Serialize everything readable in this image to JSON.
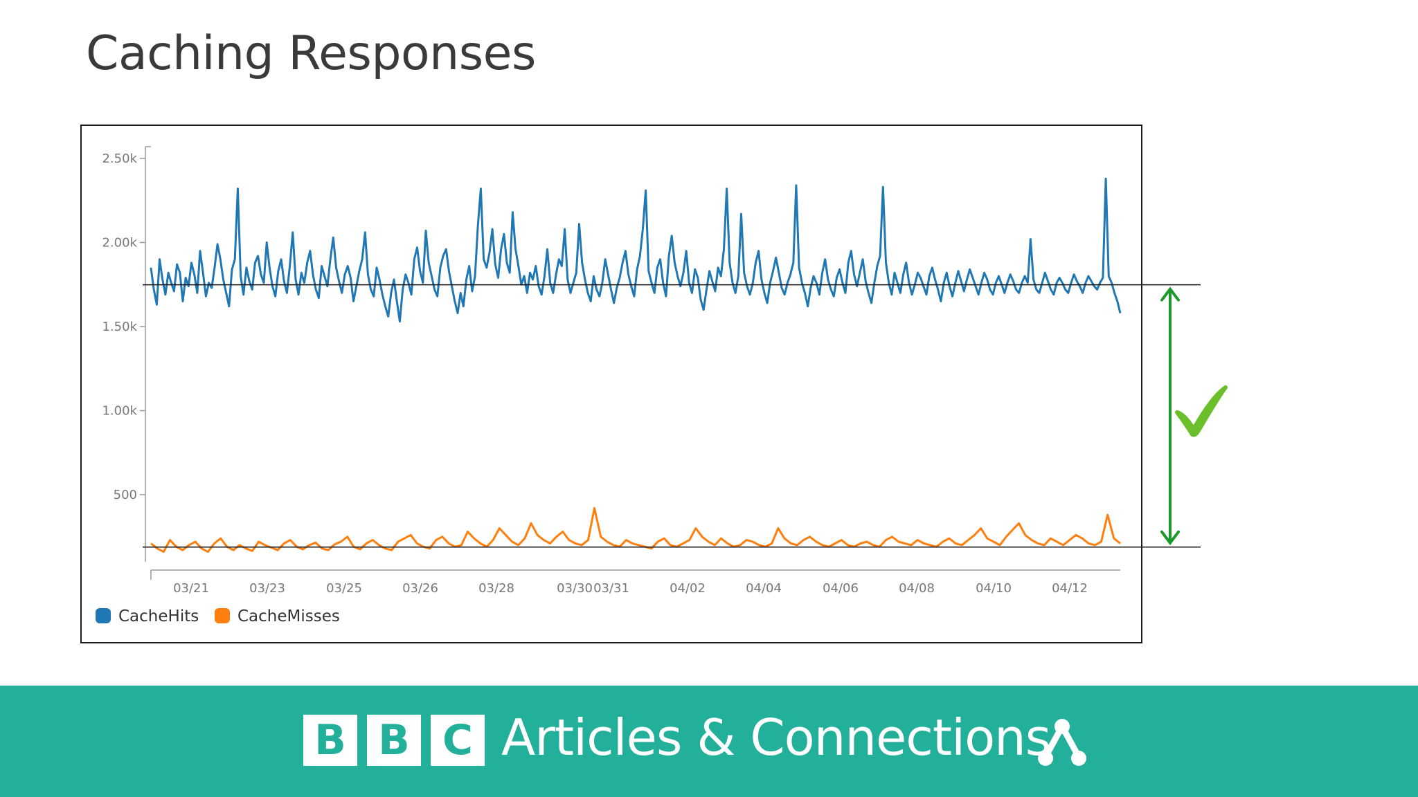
{
  "slide": {
    "title": "Caching Responses"
  },
  "footer": {
    "logo_letters": [
      "B",
      "B",
      "C"
    ],
    "title": "Articles & Connections",
    "icon": "network-icon",
    "background_color": "#22b09a"
  },
  "annotation": {
    "arrow_color": "#1a9a2a",
    "check_color": "#6bbf2a",
    "icon": "checkmark-icon",
    "reference_lines": [
      1740,
      180
    ]
  },
  "chart_data": {
    "type": "line",
    "title": "",
    "xlabel": "",
    "ylabel": "",
    "ylim": [
      100,
      2550
    ],
    "y_ticks": [
      {
        "value": 500,
        "label": "500"
      },
      {
        "value": 1000,
        "label": "1.00k"
      },
      {
        "value": 1500,
        "label": "1.50k"
      },
      {
        "value": 2000,
        "label": "2.00k"
      },
      {
        "value": 2500,
        "label": "2.50k"
      }
    ],
    "x_ticks": [
      "03/21",
      "03/23",
      "03/25",
      "03/26",
      "03/28",
      "03/30",
      "03/31",
      "04/02",
      "04/04",
      "04/06",
      "04/08",
      "04/10",
      "04/12"
    ],
    "legend_position": "bottom-left",
    "grid": false,
    "series": [
      {
        "name": "CacheHits",
        "color": "#1f77b4",
        "values": [
          1850,
          1720,
          1630,
          1900,
          1780,
          1690,
          1820,
          1760,
          1710,
          1870,
          1820,
          1650,
          1790,
          1740,
          1880,
          1810,
          1700,
          1950,
          1820,
          1680,
          1760,
          1730,
          1850,
          1990,
          1900,
          1780,
          1700,
          1620,
          1840,
          1900,
          2320,
          1800,
          1690,
          1850,
          1770,
          1720,
          1880,
          1920,
          1810,
          1760,
          2000,
          1850,
          1740,
          1680,
          1830,
          1900,
          1770,
          1700,
          1860,
          2060,
          1780,
          1690,
          1820,
          1760,
          1880,
          1950,
          1810,
          1720,
          1670,
          1860,
          1800,
          1740,
          1900,
          2030,
          1850,
          1770,
          1700,
          1810,
          1860,
          1790,
          1650,
          1740,
          1830,
          1900,
          2060,
          1810,
          1720,
          1680,
          1850,
          1780,
          1690,
          1620,
          1560,
          1700,
          1780,
          1650,
          1530,
          1720,
          1810,
          1760,
          1690,
          1900,
          1970,
          1830,
          1760,
          2070,
          1880,
          1800,
          1720,
          1680,
          1850,
          1920,
          1960,
          1830,
          1740,
          1650,
          1580,
          1700,
          1620,
          1780,
          1860,
          1710,
          1800,
          2100,
          2320,
          1900,
          1850,
          1940,
          2080,
          1870,
          1790,
          1960,
          2050,
          1880,
          1820,
          2180,
          1960,
          1860,
          1750,
          1800,
          1700,
          1820,
          1780,
          1860,
          1740,
          1690,
          1800,
          1960,
          1760,
          1700,
          1810,
          1900,
          1860,
          2080,
          1780,
          1700,
          1760,
          1820,
          2110,
          1880,
          1780,
          1700,
          1650,
          1800,
          1720,
          1680,
          1760,
          1900,
          1810,
          1720,
          1640,
          1730,
          1790,
          1880,
          1950,
          1810,
          1740,
          1680,
          1840,
          1920,
          2080,
          2310,
          1830,
          1760,
          1700,
          1850,
          1900,
          1760,
          1680,
          1920,
          2040,
          1880,
          1800,
          1740,
          1820,
          1950,
          1760,
          1700,
          1840,
          1790,
          1660,
          1600,
          1720,
          1830,
          1770,
          1710,
          1850,
          1800,
          1960,
          2320,
          1880,
          1760,
          1700,
          1800,
          2170,
          1820,
          1740,
          1690,
          1760,
          1880,
          1950,
          1780,
          1700,
          1640,
          1760,
          1830,
          1910,
          1820,
          1730,
          1690,
          1760,
          1810,
          1880,
          2340,
          1850,
          1760,
          1700,
          1620,
          1730,
          1800,
          1760,
          1690,
          1820,
          1900,
          1780,
          1720,
          1680,
          1790,
          1840,
          1760,
          1700,
          1880,
          1950,
          1810,
          1740,
          1820,
          1900,
          1770,
          1700,
          1640,
          1760,
          1860,
          1920,
          2330,
          1880,
          1760,
          1690,
          1820,
          1760,
          1700,
          1810,
          1880,
          1760,
          1690,
          1750,
          1820,
          1790,
          1740,
          1690,
          1800,
          1850,
          1780,
          1720,
          1650,
          1760,
          1820,
          1740,
          1680,
          1760,
          1830,
          1770,
          1710,
          1780,
          1840,
          1790,
          1740,
          1690,
          1760,
          1820,
          1780,
          1720,
          1690,
          1760,
          1800,
          1750,
          1700,
          1760,
          1810,
          1770,
          1720,
          1700,
          1760,
          1800,
          1760,
          2020,
          1780,
          1720,
          1700,
          1760,
          1820,
          1770,
          1720,
          1690,
          1760,
          1790,
          1760,
          1720,
          1700,
          1760,
          1810,
          1770,
          1740,
          1700,
          1760,
          1800,
          1770,
          1740,
          1720,
          1760,
          1790,
          2380,
          1800,
          1760,
          1700,
          1650,
          1580
        ],
        "note_label": ""
      },
      {
        "name": "CacheMisses",
        "color": "#ff7f0e",
        "values": [
          210,
          180,
          160,
          230,
          190,
          170,
          200,
          220,
          180,
          160,
          210,
          240,
          190,
          170,
          200,
          180,
          165,
          220,
          200,
          185,
          170,
          210,
          230,
          190,
          175,
          200,
          215,
          180,
          170,
          205,
          220,
          250,
          190,
          175,
          210,
          230,
          200,
          180,
          170,
          220,
          240,
          260,
          210,
          190,
          180,
          230,
          250,
          210,
          190,
          200,
          280,
          240,
          210,
          190,
          230,
          300,
          260,
          220,
          200,
          240,
          330,
          260,
          230,
          210,
          250,
          280,
          230,
          210,
          200,
          230,
          420,
          250,
          220,
          200,
          190,
          230,
          210,
          200,
          190,
          180,
          220,
          240,
          200,
          190,
          210,
          230,
          300,
          250,
          220,
          200,
          240,
          210,
          190,
          200,
          230,
          220,
          200,
          190,
          210,
          300,
          240,
          210,
          200,
          230,
          250,
          220,
          200,
          190,
          210,
          230,
          200,
          190,
          210,
          220,
          200,
          190,
          230,
          250,
          220,
          210,
          200,
          230,
          210,
          200,
          190,
          220,
          240,
          210,
          200,
          230,
          260,
          300,
          240,
          220,
          200,
          250,
          290,
          330,
          260,
          230,
          210,
          200,
          240,
          220,
          200,
          230,
          260,
          240,
          210,
          200,
          220,
          380,
          240,
          210
        ]
      }
    ]
  }
}
